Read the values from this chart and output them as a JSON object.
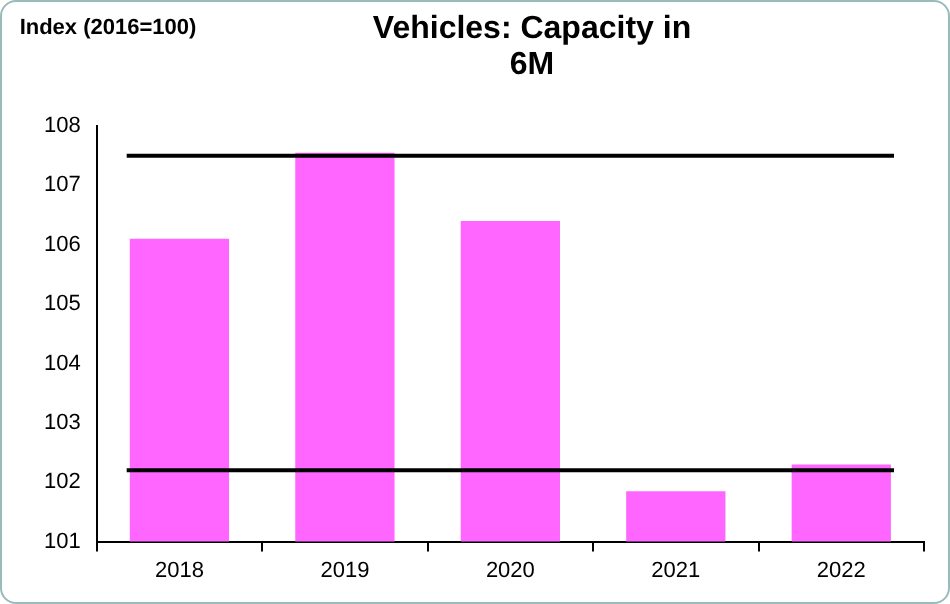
{
  "chart_data": {
    "type": "bar",
    "title": "Vehicles: Capacity in 6M",
    "ylabel": "Index (2016=100)",
    "categories": [
      "2018",
      "2019",
      "2020",
      "2021",
      "2022"
    ],
    "values": [
      106.1,
      107.55,
      106.4,
      101.85,
      102.3
    ],
    "color": "#ff66ff",
    "ylim": [
      101,
      108
    ],
    "yticks": [
      101,
      102,
      103,
      104,
      105,
      106,
      107,
      108
    ],
    "grid": false,
    "legend": false,
    "ref_lines": [
      {
        "axis": "y",
        "value": 107.5,
        "color": "#000000"
      },
      {
        "axis": "y",
        "value": 102.2,
        "color": "#000000"
      }
    ]
  }
}
